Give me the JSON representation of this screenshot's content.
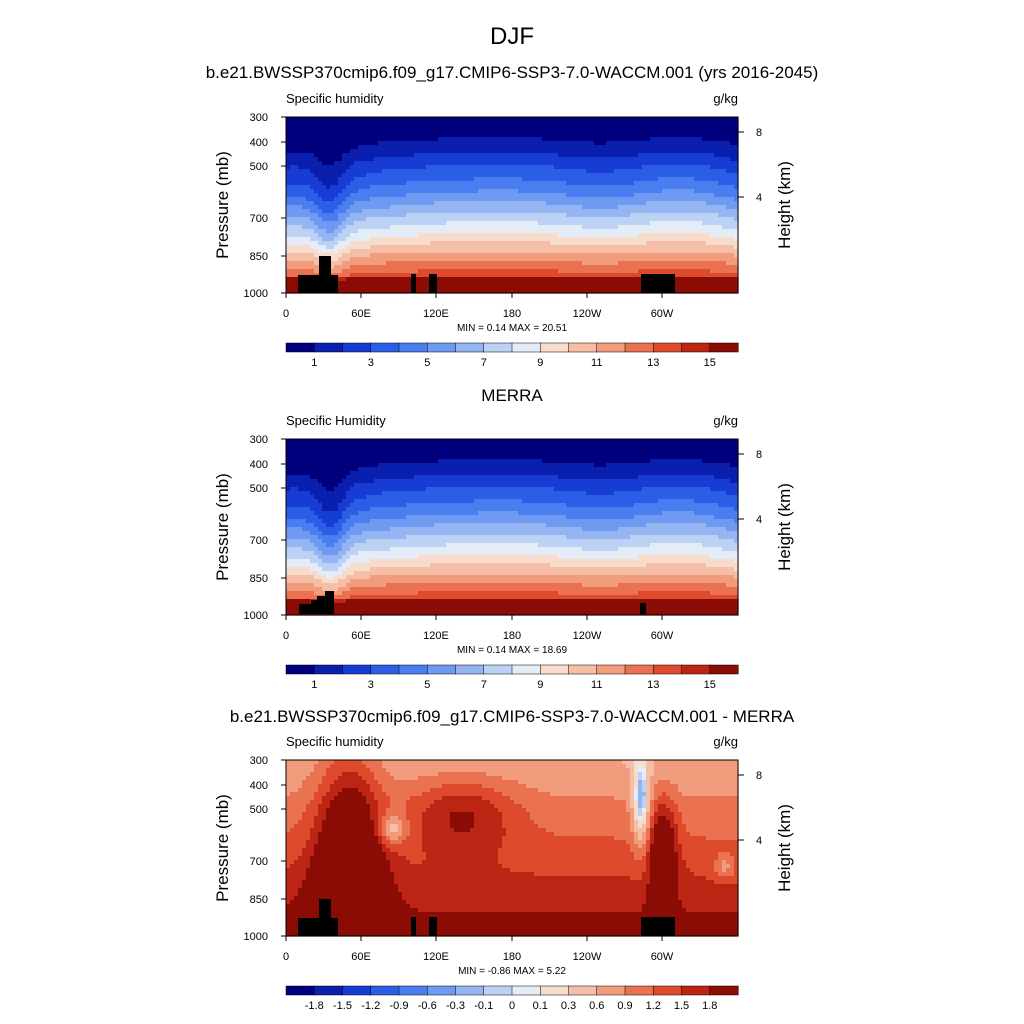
{
  "figure": {
    "title": "DJF"
  },
  "chart_data": [
    {
      "type": "heatmap",
      "title": "b.e21.BWSSP370cmip6.f09_g17.CMIP6-SSP3-7.0-WACCM.001 (yrs 2016-2045)",
      "left_label": "Specific humidity",
      "units": "g/kg",
      "ylabel": "Pressure (mb)",
      "ylabel_right": "Height (km)",
      "x_ticks": [
        "0",
        "60E",
        "120E",
        "180",
        "120W",
        "60W"
      ],
      "y_ticks": [
        "300",
        "400",
        "500",
        "700",
        "850",
        "1000"
      ],
      "y_right_ticks": [
        "8",
        "4"
      ],
      "stats": "MIN =   0.14  MAX =  20.51",
      "min": 0.14,
      "max": 20.51,
      "colorbar": {
        "levels": [
          1,
          2,
          3,
          4,
          5,
          6,
          7,
          8,
          9,
          10,
          11,
          12,
          13,
          14,
          15
        ],
        "labels": [
          "1",
          "3",
          "5",
          "7",
          "9",
          "11",
          "13",
          "15"
        ],
        "colors": [
          "#00007f",
          "#0a1fae",
          "#173cd4",
          "#2c5de6",
          "#4a7ef0",
          "#6f9af2",
          "#94b4f2",
          "#bcd2f5",
          "#e4ecf7",
          "#f7dccb",
          "#f5bea6",
          "#f29c7e",
          "#ea7251",
          "#de4a2c",
          "#bc2513",
          "#8a0c04"
        ]
      },
      "ylim": [
        1000,
        300
      ]
    },
    {
      "type": "heatmap",
      "title": "MERRA",
      "left_label": "Specific Humidity",
      "units": "g/kg",
      "ylabel": "Pressure (mb)",
      "ylabel_right": "Height (km)",
      "x_ticks": [
        "0",
        "60E",
        "120E",
        "180",
        "120W",
        "60W"
      ],
      "y_ticks": [
        "300",
        "400",
        "500",
        "700",
        "850",
        "1000"
      ],
      "y_right_ticks": [
        "8",
        "4"
      ],
      "stats": "MIN =   0.14  MAX =  18.69",
      "min": 0.14,
      "max": 18.69,
      "colorbar": {
        "levels": [
          1,
          2,
          3,
          4,
          5,
          6,
          7,
          8,
          9,
          10,
          11,
          12,
          13,
          14,
          15
        ],
        "labels": [
          "1",
          "3",
          "5",
          "7",
          "9",
          "11",
          "13",
          "15"
        ],
        "colors": [
          "#00007f",
          "#0a1fae",
          "#173cd4",
          "#2c5de6",
          "#4a7ef0",
          "#6f9af2",
          "#94b4f2",
          "#bcd2f5",
          "#e4ecf7",
          "#f7dccb",
          "#f5bea6",
          "#f29c7e",
          "#ea7251",
          "#de4a2c",
          "#bc2513",
          "#8a0c04"
        ]
      },
      "ylim": [
        1000,
        300
      ]
    },
    {
      "type": "heatmap",
      "title": "b.e21.BWSSP370cmip6.f09_g17.CMIP6-SSP3-7.0-WACCM.001 - MERRA",
      "left_label": "Specific humidity",
      "units": "g/kg",
      "ylabel": "Pressure (mb)",
      "ylabel_right": "Height (km)",
      "x_ticks": [
        "0",
        "60E",
        "120E",
        "180",
        "120W",
        "60W"
      ],
      "y_ticks": [
        "300",
        "400",
        "500",
        "700",
        "850",
        "1000"
      ],
      "y_right_ticks": [
        "8",
        "4"
      ],
      "stats": "MIN =  -0.86  MAX =   5.22",
      "min": -0.86,
      "max": 5.22,
      "colorbar": {
        "levels": [
          -1.8,
          -1.5,
          -1.2,
          -0.9,
          -0.6,
          -0.3,
          -0.1,
          0,
          0.1,
          0.3,
          0.6,
          0.9,
          1.2,
          1.5,
          1.8
        ],
        "labels": [
          "-1.8",
          "-1.5",
          "-1.2",
          "-0.9",
          "-0.6",
          "-0.3",
          "-0.1",
          "0",
          "0.1",
          "0.3",
          "0.6",
          "0.9",
          "1.2",
          "1.5",
          "1.8"
        ],
        "colors": [
          "#00007f",
          "#0a1fae",
          "#173cd4",
          "#2c5de6",
          "#4a7ef0",
          "#6f9af2",
          "#94b4f2",
          "#bcd2f5",
          "#e4ecf7",
          "#f7dccb",
          "#f5bea6",
          "#f29c7e",
          "#ea7251",
          "#de4a2c",
          "#bc2513",
          "#8a0c04"
        ]
      },
      "ylim": [
        1000,
        300
      ]
    }
  ]
}
